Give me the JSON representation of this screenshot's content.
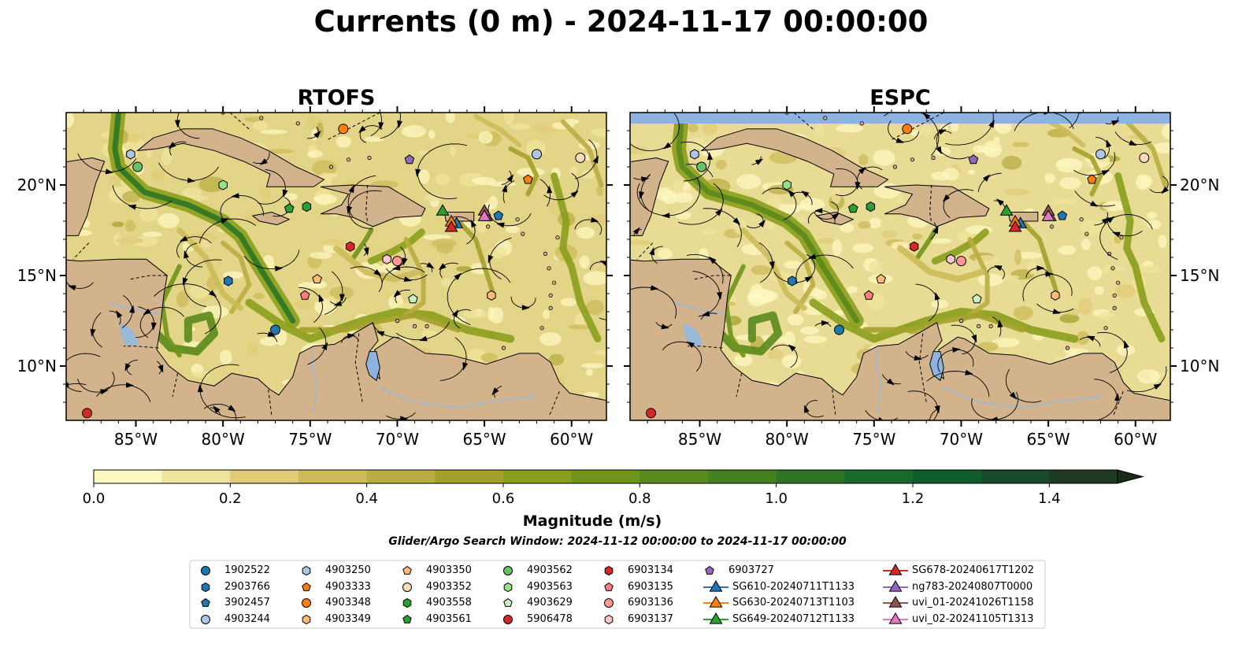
{
  "suptitle": "Currents (0 m) - 2024-11-17 00:00:00",
  "panels": [
    {
      "title": "RTOFS"
    },
    {
      "title": "ESPC"
    }
  ],
  "colors": {
    "land": "#d2b38c",
    "water_body": "#8fb3e0",
    "rivers": "#9ab8d8",
    "streamline": "#000000",
    "colormap": [
      "#fdf7c0",
      "#f0e39c",
      "#e0cc78",
      "#cdbb5a",
      "#b9ad43",
      "#a3a12c",
      "#899e1c",
      "#6f9419",
      "#5a8a1b",
      "#43801f",
      "#2b7525",
      "#166a2c",
      "#0f5c2e",
      "#1a4a2b",
      "#1f3a24"
    ]
  },
  "colorbar": {
    "label": "Magnitude (m/s)",
    "ticks": [
      "0.0",
      "0.2",
      "0.4",
      "0.6",
      "0.8",
      "1.0",
      "1.2",
      "1.4"
    ],
    "min": 0.0,
    "max": 1.5,
    "extend": "max"
  },
  "search_window": "Glider/Argo Search Window: 2024-11-12 00:00:00 to 2024-11-17 00:00:00",
  "legend": [
    {
      "label": "1902522",
      "marker": "circle",
      "color": "#1f77b4"
    },
    {
      "label": "2903766",
      "marker": "hexagon",
      "color": "#1f77b4"
    },
    {
      "label": "3902457",
      "marker": "pentagon",
      "color": "#1f77b4"
    },
    {
      "label": "4903244",
      "marker": "circle",
      "color": "#aec7e8"
    },
    {
      "label": "4903250",
      "marker": "hexagon",
      "color": "#aec7e8"
    },
    {
      "label": "4903333",
      "marker": "pentagon",
      "color": "#ff7f0e"
    },
    {
      "label": "4903348",
      "marker": "circle",
      "color": "#ff7f0e"
    },
    {
      "label": "4903349",
      "marker": "hexagon",
      "color": "#ffbb78"
    },
    {
      "label": "4903350",
      "marker": "pentagon",
      "color": "#ffbb78"
    },
    {
      "label": "4903352",
      "marker": "circle",
      "color": "#ffdcb8"
    },
    {
      "label": "4903558",
      "marker": "hexagon",
      "color": "#2ca02c"
    },
    {
      "label": "4903561",
      "marker": "pentagon",
      "color": "#2ca02c"
    },
    {
      "label": "4903562",
      "marker": "circle",
      "color": "#66c266"
    },
    {
      "label": "4903563",
      "marker": "hexagon",
      "color": "#98df8a"
    },
    {
      "label": "4903629",
      "marker": "pentagon",
      "color": "#c8f0c0"
    },
    {
      "label": "5906478",
      "marker": "circle",
      "color": "#d62728"
    },
    {
      "label": "6903134",
      "marker": "hexagon",
      "color": "#d62728"
    },
    {
      "label": "6903135",
      "marker": "pentagon",
      "color": "#ff7f7f"
    },
    {
      "label": "6903136",
      "marker": "circle",
      "color": "#ff9896"
    },
    {
      "label": "6903137",
      "marker": "hexagon",
      "color": "#ffc8c8"
    },
    {
      "label": "6903727",
      "marker": "pentagon",
      "color": "#9467bd"
    },
    {
      "label": "SG610-20240711T1133",
      "marker": "triangle",
      "color": "#1f77b4"
    },
    {
      "label": "SG630-20240713T1103",
      "marker": "triangle",
      "color": "#ff7f0e"
    },
    {
      "label": "SG649-20240712T1133",
      "marker": "triangle",
      "color": "#2ca02c"
    },
    {
      "label": "SG678-20240617T1202",
      "marker": "triangle",
      "color": "#d62728"
    },
    {
      "label": "ng783-20240807T0000",
      "marker": "triangle",
      "color": "#9467bd"
    },
    {
      "label": "uvi_01-20241026T1158",
      "marker": "triangle",
      "color": "#8c564b"
    },
    {
      "label": "uvi_02-20241105T1313",
      "marker": "triangle",
      "color": "#e377c2"
    }
  ],
  "chart_data": {
    "type": "heatmap",
    "variable": "ocean current magnitude with streamlines",
    "units": "m/s",
    "x_ticks": [
      -85,
      -80,
      -75,
      -70,
      -65,
      -60
    ],
    "x_tick_labels": [
      "85°W",
      "80°W",
      "75°W",
      "70°W",
      "65°W",
      "60°W"
    ],
    "y_ticks": [
      10,
      15,
      20
    ],
    "y_tick_labels": [
      "10°N",
      "15°N",
      "20°N"
    ],
    "xlim": [
      -89,
      -58
    ],
    "ylim": [
      7,
      24
    ],
    "observations": [
      {
        "id": "1902522",
        "lon": -77.0,
        "lat": 12.0
      },
      {
        "id": "2903766",
        "lon": -79.7,
        "lat": 14.7
      },
      {
        "id": "3902457",
        "lon": -64.2,
        "lat": 18.3
      },
      {
        "id": "4903244",
        "lon": -62.0,
        "lat": 21.7
      },
      {
        "id": "4903250",
        "lon": -85.3,
        "lat": 21.7
      },
      {
        "id": "4903333",
        "lon": -62.5,
        "lat": 20.3
      },
      {
        "id": "4903348",
        "lon": -73.1,
        "lat": 23.1
      },
      {
        "id": "4903349",
        "lon": -64.6,
        "lat": 13.9
      },
      {
        "id": "4903350",
        "lon": -74.6,
        "lat": 14.8
      },
      {
        "id": "4903352",
        "lon": -59.5,
        "lat": 21.5
      },
      {
        "id": "4903558",
        "lon": -75.2,
        "lat": 18.8
      },
      {
        "id": "4903561",
        "lon": -76.2,
        "lat": 18.7
      },
      {
        "id": "4903562",
        "lon": -84.9,
        "lat": 21.0
      },
      {
        "id": "4903563",
        "lon": -80.0,
        "lat": 20.0
      },
      {
        "id": "4903629",
        "lon": -69.1,
        "lat": 13.7
      },
      {
        "id": "5906478",
        "lon": -87.8,
        "lat": 7.4
      },
      {
        "id": "6903134",
        "lon": -72.7,
        "lat": 16.6
      },
      {
        "id": "6903135",
        "lon": -75.3,
        "lat": 13.9
      },
      {
        "id": "6903136",
        "lon": -70.0,
        "lat": 15.8
      },
      {
        "id": "6903137",
        "lon": -70.6,
        "lat": 15.9
      },
      {
        "id": "6903727",
        "lon": -69.3,
        "lat": 21.4
      },
      {
        "id": "SG610-20240711T1133",
        "lon": -66.6,
        "lat": 17.9
      },
      {
        "id": "SG630-20240713T1103",
        "lon": -66.9,
        "lat": 18.0
      },
      {
        "id": "SG649-20240712T1133",
        "lon": -67.4,
        "lat": 18.6
      },
      {
        "id": "SG678-20240617T1202",
        "lon": -66.9,
        "lat": 17.7
      },
      {
        "id": "ng783-20240807T0000",
        "lon": -64.9,
        "lat": 18.3
      },
      {
        "id": "uvi_01-20241026T1158",
        "lon": -65.0,
        "lat": 18.6
      },
      {
        "id": "uvi_02-20241105T1313",
        "lon": -65.0,
        "lat": 18.3
      }
    ]
  }
}
